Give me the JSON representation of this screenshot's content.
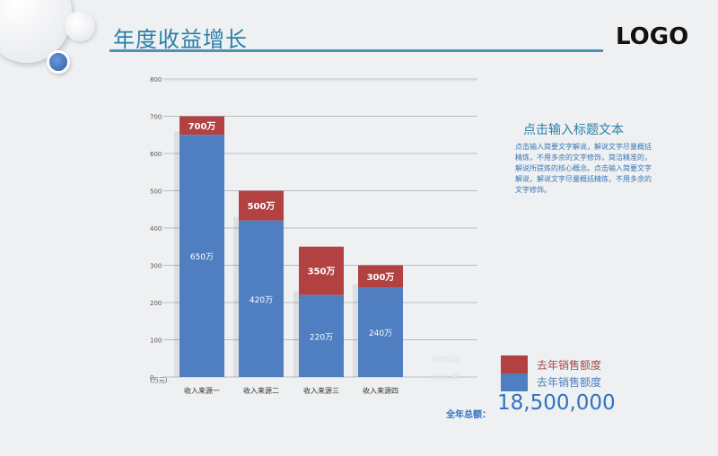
{
  "header": {
    "title": "年度收益增长",
    "logo": "LOGO"
  },
  "chart_data": {
    "type": "bar",
    "stacked": true,
    "categories": [
      "收入来源一",
      "收入来源二",
      "收入来源三",
      "收入来源四"
    ],
    "series": [
      {
        "name": "去年销售额度",
        "values": [
          650,
          420,
          220,
          240
        ],
        "labels": [
          "650万",
          "420万",
          "220万",
          "240万"
        ],
        "color": "#4f7fc0"
      },
      {
        "name": "去年销售额度",
        "values": [
          700,
          500,
          350,
          300
        ],
        "labels": [
          "700万",
          "500万",
          "350万",
          "300万"
        ],
        "color": "#b24142"
      }
    ],
    "y_ticks": [
      "0",
      "100",
      "200",
      "300",
      "400",
      "500",
      "600",
      "700",
      "800"
    ],
    "y_unit": "(万元)",
    "grid": true,
    "legend_position": "bottom-right"
  },
  "side_text": {
    "title": "点击输入标题文本",
    "body": "点击输入简要文字解说，解说文字尽量概括精炼，不用多余的文字修饰，简洁精准的，解说所提炼的核心概念。点击输入简要文字解说，解说文字尽量概括精炼，不用多余的文字修饰。"
  },
  "faint_labels": [
    "添加标题",
    "添加标题"
  ],
  "total": {
    "label": "全年总额：",
    "value": "18,500,000"
  }
}
